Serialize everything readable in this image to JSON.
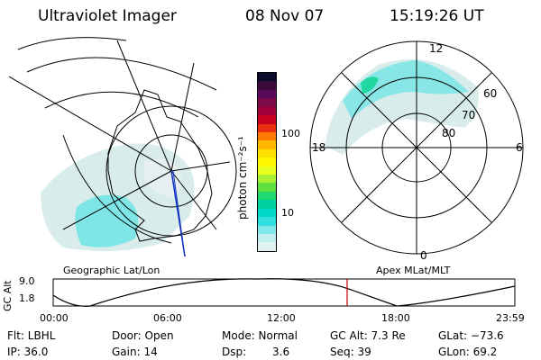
{
  "header": {
    "title": "Ultraviolet Imager",
    "date": "08 Nov 07",
    "time": "15:19:26 UT"
  },
  "left_panel": {
    "label": "Geographic Lat/Lon"
  },
  "right_panel": {
    "label": "Apex MLat/MLT",
    "mlt_labels": [
      "12",
      "18",
      "6",
      "0"
    ],
    "mlat_labels": [
      "60",
      "70",
      "80"
    ]
  },
  "colorbar": {
    "unit": "photon cm⁻²s⁻¹",
    "ticks": [
      "100",
      "10"
    ],
    "colors": [
      "#0b0b2a",
      "#3a0a3a",
      "#5a0a5a",
      "#7a0a4a",
      "#a0003a",
      "#c80020",
      "#e83010",
      "#ff7a00",
      "#ffb800",
      "#ffe000",
      "#fff700",
      "#e8ff20",
      "#a8f030",
      "#60e040",
      "#20d870",
      "#00d0a0",
      "#00d8c8",
      "#30e0e0",
      "#80e8e8",
      "#c0eeee",
      "#e2f2f2"
    ]
  },
  "orbit_plot": {
    "ylabel": "GC Alt",
    "y_ticks": [
      "9.0",
      "1.8"
    ],
    "x_ticks": [
      "00:00",
      "06:00",
      "12:00",
      "18:00",
      "23:59"
    ],
    "current_time_marker_color": "#c00000"
  },
  "info": {
    "row1": {
      "filter": "Flt: LBHL",
      "door": "Door: Open",
      "mode": "Mode: Normal",
      "gcalt": "GC Alt: 7.3 Re",
      "glat": "GLat: −73.6"
    },
    "row2": {
      "ip": "IP: 36.0",
      "gain": "Gain: 14",
      "dsp_label": "Dsp:",
      "dsp_value": "3.6",
      "seq": "Seq: 39",
      "glon": "GLon: 69.2"
    }
  }
}
